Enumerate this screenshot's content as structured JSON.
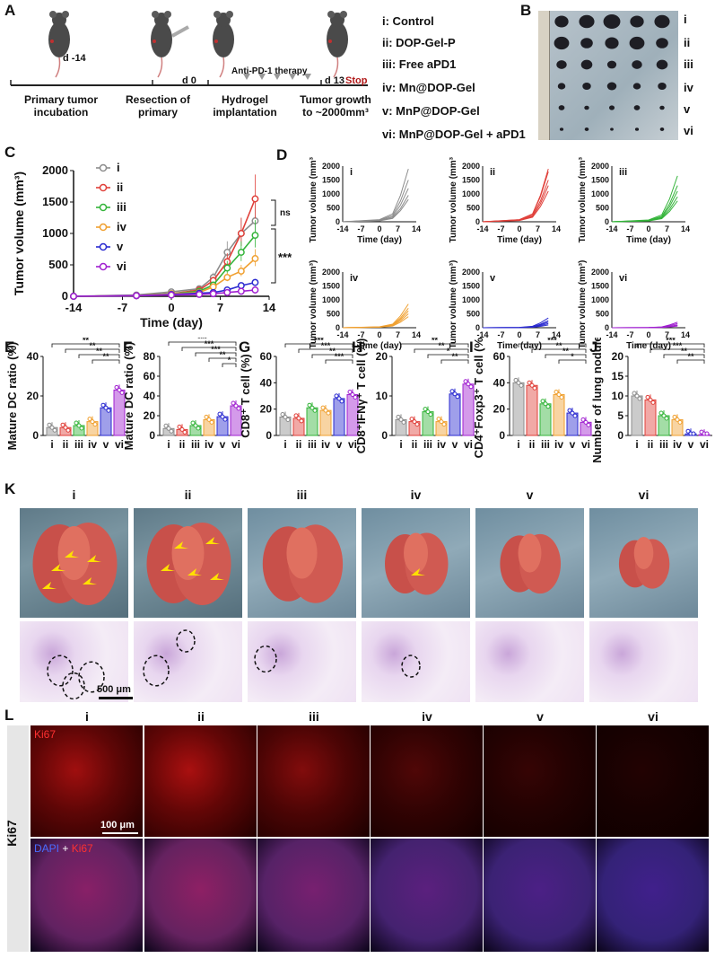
{
  "panels": {
    "A": "A",
    "B": "B",
    "C": "C",
    "D": "D",
    "E": "E",
    "F": "F",
    "G": "G",
    "H": "H",
    "I": "I",
    "J": "J",
    "K": "K",
    "L": "L"
  },
  "timeline": {
    "days": [
      "d -14",
      "d 0",
      "d 13"
    ],
    "stop": "Stop",
    "therapy": "Anti-PD-1 therapy",
    "steps": [
      "Primary tumor incubation",
      "Resection of primary",
      "Hydrogel implantation",
      "Tumor growth to ~2000mm³"
    ]
  },
  "groups_legend": [
    "i: Control",
    "ii: DOP-Gel-P",
    "iii: Free aPD1",
    "iv: Mn@DOP-Gel",
    "v: MnP@DOP-Gel",
    "vi: MnP@DOP-Gel + aPD1"
  ],
  "group_ids": [
    "i",
    "ii",
    "iii",
    "iv",
    "v",
    "vi"
  ],
  "colors": {
    "i": "#8c8c8c",
    "ii": "#e0403a",
    "iii": "#34b43a",
    "iv": "#f0a030",
    "v": "#2a2ad0",
    "vi": "#a020d0",
    "stop": "#b01818",
    "accent_arrow": "#ffe000"
  },
  "significance": {
    "C": [
      "ns",
      "***"
    ],
    "E": [
      "**",
      "**",
      "**",
      "**"
    ],
    "F": [
      "***",
      "***",
      "***",
      "**",
      "*"
    ],
    "G": [
      "***",
      "***",
      "**",
      "***"
    ],
    "H": [
      "**",
      "**",
      "*",
      "**"
    ],
    "I": [
      "***",
      "**",
      "**",
      "*"
    ],
    "J": [
      "***",
      "***",
      "**",
      "**"
    ]
  },
  "chart_data": [
    {
      "id": "C",
      "type": "line",
      "xlabel": "Time (day)",
      "ylabel": "Tumor volume (mm³)",
      "xlim": [
        -14,
        14
      ],
      "ylim": [
        0,
        2000
      ],
      "xticks": [
        -14,
        -7,
        0,
        7,
        14
      ],
      "yticks": [
        0,
        500,
        1000,
        1500,
        2000
      ],
      "x": [
        -14,
        -5,
        0,
        4,
        6,
        8,
        10,
        12
      ],
      "series": [
        {
          "name": "i",
          "values": [
            0,
            20,
            70,
            120,
            300,
            700,
            1000,
            1200
          ]
        },
        {
          "name": "ii",
          "values": [
            0,
            10,
            40,
            100,
            250,
            550,
            1000,
            1550
          ]
        },
        {
          "name": "iii",
          "values": [
            0,
            10,
            40,
            80,
            180,
            450,
            700,
            970
          ]
        },
        {
          "name": "iv",
          "values": [
            0,
            10,
            40,
            60,
            150,
            300,
            400,
            600
          ]
        },
        {
          "name": "v",
          "values": [
            0,
            10,
            30,
            50,
            60,
            100,
            170,
            220
          ]
        },
        {
          "name": "vi",
          "values": [
            0,
            10,
            20,
            30,
            40,
            60,
            80,
            100
          ]
        }
      ]
    },
    {
      "id": "D",
      "type": "line",
      "xlabel": "Time (day)",
      "ylabel": "Tumor volume (mm³)",
      "xlim": [
        -14,
        14
      ],
      "ylim": [
        0,
        2000
      ],
      "xticks": [
        -14,
        -7,
        0,
        7,
        14
      ],
      "yticks": [
        0,
        500,
        1000,
        1500,
        2000
      ],
      "panels": [
        {
          "name": "i",
          "final": [
            1900,
            1500,
            1200,
            950,
            800
          ]
        },
        {
          "name": "ii",
          "final": [
            1900,
            1800,
            1500,
            1300,
            1100
          ]
        },
        {
          "name": "iii",
          "final": [
            1650,
            1300,
            1100,
            900,
            750
          ]
        },
        {
          "name": "iv",
          "final": [
            850,
            700,
            600,
            500,
            400
          ]
        },
        {
          "name": "v",
          "final": [
            350,
            250,
            200,
            150,
            100
          ]
        },
        {
          "name": "vi",
          "final": [
            200,
            150,
            100,
            80,
            60
          ]
        }
      ]
    },
    {
      "id": "E",
      "type": "bar",
      "ylabel": "Mature DC ratio (%)",
      "ylim": [
        0,
        40
      ],
      "yticks": [
        0,
        20,
        40
      ],
      "categories": [
        "i",
        "ii",
        "iii",
        "iv",
        "v",
        "vi"
      ],
      "values": [
        4,
        4,
        5,
        7,
        14,
        23
      ]
    },
    {
      "id": "F",
      "type": "bar",
      "ylabel": "Mature DC ratio (%)",
      "ylim": [
        0,
        80
      ],
      "yticks": [
        0,
        20,
        40,
        60,
        80
      ],
      "categories": [
        "i",
        "ii",
        "iii",
        "iv",
        "v",
        "vi"
      ],
      "values": [
        7,
        6,
        10,
        16,
        19,
        30
      ]
    },
    {
      "id": "G",
      "type": "bar",
      "ylabel": "CD8⁺ T cell (%)",
      "ylim": [
        0,
        60
      ],
      "yticks": [
        0,
        20,
        40,
        60
      ],
      "categories": [
        "i",
        "ii",
        "iii",
        "iv",
        "v",
        "vi"
      ],
      "values": [
        14,
        13,
        21,
        19,
        28,
        31
      ]
    },
    {
      "id": "H",
      "type": "bar",
      "ylabel": "CD8⁺IFNγ⁺ T cell (%)",
      "ylim": [
        0,
        20
      ],
      "yticks": [
        0,
        10,
        20
      ],
      "categories": [
        "i",
        "ii",
        "iii",
        "iv",
        "v",
        "vi"
      ],
      "values": [
        4,
        3.5,
        6,
        3.5,
        10.5,
        13
      ]
    },
    {
      "id": "I",
      "type": "bar",
      "ylabel": "CD4⁺Foxp3⁺ T cell (%)",
      "ylim": [
        0,
        60
      ],
      "yticks": [
        0,
        20,
        40,
        60
      ],
      "categories": [
        "i",
        "ii",
        "iii",
        "iv",
        "v",
        "vi"
      ],
      "values": [
        40,
        38,
        24,
        31,
        17,
        10
      ]
    },
    {
      "id": "J",
      "type": "bar",
      "ylabel": "Number of lung nodules",
      "ylim": [
        0,
        20
      ],
      "yticks": [
        0,
        5,
        10,
        15,
        20
      ],
      "categories": [
        "i",
        "ii",
        "iii",
        "iv",
        "v",
        "vi"
      ],
      "values": [
        10,
        9,
        5,
        4,
        0.4,
        0.2
      ]
    }
  ],
  "K": {
    "cols": [
      "i",
      "ii",
      "iii",
      "iv",
      "v",
      "vi"
    ],
    "scale": "500 μm"
  },
  "L": {
    "cols": [
      "i",
      "ii",
      "iii",
      "iv",
      "v",
      "vi"
    ],
    "row_label": "Ki67",
    "stain1": "Ki67",
    "stain2_a": "DAPI",
    "stain2_plus": " + ",
    "stain2_b": "Ki67",
    "scale": "100 μm"
  }
}
